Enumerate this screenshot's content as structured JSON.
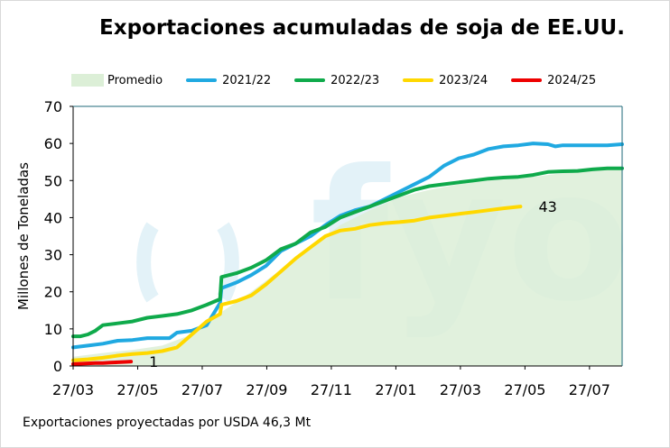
{
  "chart_data": {
    "type": "line",
    "title": "Exportaciones acumuladas de soja de EE.UU.",
    "ylabel": "Millones de Toneladas",
    "xlabel": "",
    "ylim": [
      0,
      70
    ],
    "yticks": [
      0,
      10,
      20,
      30,
      40,
      50,
      60,
      70
    ],
    "xtick_labels": [
      "27/03",
      "27/05",
      "27/07",
      "27/09",
      "27/11",
      "27/01",
      "27/03",
      "27/05",
      "27/07"
    ],
    "x_tick_weeks": [
      0,
      8.7,
      17.4,
      26.1,
      34.8,
      43.5,
      52.2,
      60.9,
      69.6
    ],
    "x_max_week": 74,
    "legend_position": "top",
    "grid": false,
    "series": [
      {
        "name": "Promedio",
        "kind": "area",
        "color": "#dcefd7",
        "x": [
          0,
          4,
          8,
          12,
          16,
          20,
          24,
          28,
          32,
          36,
          40,
          44,
          48,
          52,
          56,
          60,
          64,
          68,
          72,
          74
        ],
        "values": [
          2.5,
          3.5,
          4.3,
          5.5,
          8.5,
          14.5,
          20,
          26,
          32,
          38,
          42,
          45.5,
          47.5,
          49,
          50,
          50.5,
          51.5,
          52.5,
          53,
          53.3
        ]
      },
      {
        "name": "2021/22",
        "kind": "line",
        "color": "#20a9e1",
        "x": [
          0,
          2,
          4,
          6,
          8,
          10,
          12,
          13,
          14,
          16,
          18,
          19.8,
          20,
          22,
          24,
          26,
          28,
          30,
          32,
          34,
          36,
          38,
          40,
          42,
          44,
          46,
          48,
          50,
          52,
          54,
          56,
          58,
          60,
          62,
          64,
          65,
          66,
          68,
          70,
          72,
          74
        ],
        "values": [
          5,
          5.5,
          6,
          6.8,
          7,
          7.5,
          7.5,
          7.5,
          9,
          9.5,
          11,
          17,
          21,
          22.5,
          24.5,
          27,
          31,
          33,
          35,
          38,
          40.5,
          42,
          43,
          45,
          47,
          49,
          51,
          54,
          56,
          57,
          58.5,
          59.2,
          59.5,
          60,
          59.8,
          59.2,
          59.5,
          59.5,
          59.5,
          59.5,
          59.8
        ]
      },
      {
        "name": "2022/23",
        "kind": "line",
        "color": "#0faa4b",
        "x": [
          0,
          1,
          2,
          3,
          4,
          6,
          8,
          10,
          12,
          14,
          16,
          18,
          19.8,
          20,
          21,
          22,
          24,
          26,
          28,
          30,
          32,
          34,
          36,
          38,
          40,
          42,
          44,
          46,
          48,
          50,
          52,
          54,
          56,
          58,
          60,
          62,
          64,
          66,
          68,
          70,
          72,
          74
        ],
        "values": [
          8,
          8,
          8.5,
          9.5,
          11,
          11.5,
          12,
          13,
          13.5,
          14,
          15,
          16.5,
          18,
          24,
          24.5,
          25,
          26.5,
          28.5,
          31.5,
          33,
          36,
          37.5,
          40,
          41.5,
          43,
          44.5,
          46,
          47.5,
          48.5,
          49,
          49.5,
          50,
          50.5,
          50.8,
          51,
          51.5,
          52.3,
          52.5,
          52.6,
          53,
          53.3,
          53.3
        ]
      },
      {
        "name": "2023/24",
        "kind": "line",
        "color": "#ffd800",
        "x": [
          0,
          2,
          4,
          6,
          8,
          10,
          12,
          14,
          16,
          18,
          19.8,
          20,
          22,
          24,
          26,
          28,
          30,
          32,
          34,
          36,
          38,
          40,
          42,
          44,
          46,
          48,
          50,
          52,
          54,
          56,
          58,
          60.3
        ],
        "values": [
          1.5,
          1.8,
          2.2,
          2.8,
          3.2,
          3.5,
          4,
          5,
          8.5,
          12,
          14,
          16.5,
          17.5,
          19,
          22,
          25.5,
          29,
          32,
          35,
          36.5,
          37,
          38,
          38.5,
          38.8,
          39.2,
          40,
          40.5,
          41,
          41.5,
          42,
          42.5,
          43
        ]
      },
      {
        "name": "2024/25",
        "kind": "line",
        "color": "#ee0000",
        "x": [
          0,
          1,
          2,
          3,
          4,
          5,
          6,
          7,
          7.8
        ],
        "values": [
          0.5,
          0.6,
          0.7,
          0.8,
          0.8,
          0.9,
          1,
          1.1,
          1.2
        ]
      }
    ],
    "annotations": [
      {
        "text": "43",
        "series": "2023/24"
      },
      {
        "text": "1",
        "series": "2024/25"
      }
    ]
  },
  "watermark_text": "fyo",
  "footnote": "Exportaciones proyectadas por USDA 46,3 Mt"
}
